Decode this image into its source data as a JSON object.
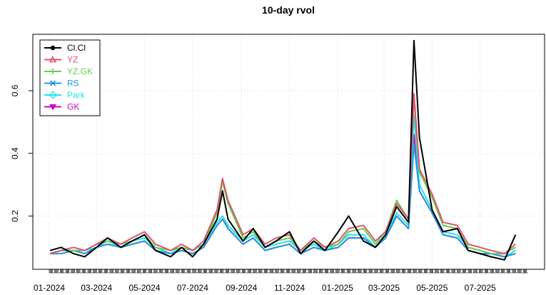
{
  "chart_data": {
    "type": "line",
    "title": "10-day rvol",
    "xlabel": "",
    "ylabel": "",
    "ylim": [
      0.03,
      0.78
    ],
    "y_ticks": [
      0.2,
      0.4,
      0.6
    ],
    "y_tick_labels": [
      "0.2",
      "0.4",
      "0.6"
    ],
    "x_range": [
      "2024-01-01",
      "2025-08-31"
    ],
    "x_ticks": [
      "2024-01-01",
      "2024-03-01",
      "2024-05-01",
      "2024-07-01",
      "2024-09-01",
      "2024-11-01",
      "2025-01-01",
      "2025-03-01",
      "2025-05-01",
      "2025-07-01"
    ],
    "x_tick_labels": [
      "01-2024",
      "03-2024",
      "05-2024",
      "07-2024",
      "09-2024",
      "11-2024",
      "01-2025",
      "03-2025",
      "05-2025",
      "07-2025"
    ],
    "grid": true,
    "legend_position": "top-left",
    "x": [
      "2024-01-02",
      "2024-01-16",
      "2024-02-01",
      "2024-02-15",
      "2024-03-01",
      "2024-03-15",
      "2024-04-01",
      "2024-04-15",
      "2024-05-01",
      "2024-05-15",
      "2024-06-03",
      "2024-06-17",
      "2024-07-01",
      "2024-07-15",
      "2024-08-01",
      "2024-08-08",
      "2024-08-15",
      "2024-09-03",
      "2024-09-16",
      "2024-10-01",
      "2024-10-15",
      "2024-11-01",
      "2024-11-15",
      "2024-12-02",
      "2024-12-16",
      "2025-01-02",
      "2025-01-15",
      "2025-02-03",
      "2025-02-18",
      "2025-03-03",
      "2025-03-17",
      "2025-04-01",
      "2025-04-08",
      "2025-04-15",
      "2025-05-01",
      "2025-05-15",
      "2025-06-02",
      "2025-06-16",
      "2025-07-01",
      "2025-07-15",
      "2025-08-01",
      "2025-08-15"
    ],
    "series": [
      {
        "name": "Cl.Cl",
        "color": "#000000",
        "values": [
          0.09,
          0.1,
          0.08,
          0.07,
          0.1,
          0.13,
          0.1,
          0.12,
          0.14,
          0.09,
          0.07,
          0.1,
          0.07,
          0.11,
          0.19,
          0.28,
          0.19,
          0.12,
          0.16,
          0.1,
          0.12,
          0.15,
          0.08,
          0.12,
          0.09,
          0.15,
          0.2,
          0.12,
          0.1,
          0.14,
          0.23,
          0.18,
          0.76,
          0.45,
          0.22,
          0.15,
          0.16,
          0.09,
          0.08,
          0.07,
          0.06,
          0.14
        ]
      },
      {
        "name": "YZ",
        "color": "#DF536B",
        "values": [
          0.08,
          0.09,
          0.1,
          0.09,
          0.11,
          0.13,
          0.11,
          0.13,
          0.15,
          0.11,
          0.09,
          0.11,
          0.09,
          0.12,
          0.22,
          0.32,
          0.25,
          0.14,
          0.16,
          0.11,
          0.13,
          0.14,
          0.09,
          0.13,
          0.1,
          0.12,
          0.16,
          0.17,
          0.12,
          0.15,
          0.24,
          0.19,
          0.59,
          0.35,
          0.27,
          0.18,
          0.17,
          0.11,
          0.1,
          0.09,
          0.08,
          0.11
        ]
      },
      {
        "name": "YZ.GK",
        "color": "#61D04F",
        "values": [
          0.08,
          0.09,
          0.09,
          0.09,
          0.11,
          0.12,
          0.11,
          0.12,
          0.14,
          0.1,
          0.09,
          0.1,
          0.09,
          0.11,
          0.21,
          0.31,
          0.24,
          0.13,
          0.15,
          0.1,
          0.12,
          0.13,
          0.09,
          0.12,
          0.1,
          0.11,
          0.15,
          0.16,
          0.11,
          0.15,
          0.25,
          0.19,
          0.58,
          0.34,
          0.26,
          0.17,
          0.16,
          0.1,
          0.09,
          0.08,
          0.08,
          0.1
        ]
      },
      {
        "name": "RS",
        "color": "#2297E6",
        "values": [
          0.08,
          0.08,
          0.09,
          0.08,
          0.1,
          0.11,
          0.1,
          0.11,
          0.12,
          0.09,
          0.08,
          0.09,
          0.08,
          0.1,
          0.17,
          0.19,
          0.16,
          0.11,
          0.13,
          0.09,
          0.1,
          0.11,
          0.08,
          0.1,
          0.09,
          0.1,
          0.13,
          0.13,
          0.1,
          0.13,
          0.2,
          0.16,
          0.43,
          0.28,
          0.21,
          0.14,
          0.13,
          0.09,
          0.08,
          0.08,
          0.07,
          0.08
        ]
      },
      {
        "name": "Park",
        "color": "#28E2E5",
        "values": [
          0.08,
          0.09,
          0.09,
          0.09,
          0.1,
          0.12,
          0.1,
          0.12,
          0.13,
          0.1,
          0.08,
          0.1,
          0.09,
          0.11,
          0.18,
          0.2,
          0.17,
          0.12,
          0.14,
          0.1,
          0.11,
          0.12,
          0.09,
          0.11,
          0.09,
          0.11,
          0.14,
          0.14,
          0.1,
          0.14,
          0.21,
          0.17,
          0.52,
          0.3,
          0.22,
          0.15,
          0.14,
          0.1,
          0.09,
          0.08,
          0.07,
          0.09
        ]
      },
      {
        "name": "GK",
        "color": "#CD0BBC",
        "values": [
          0.08,
          0.09,
          0.09,
          0.08,
          0.1,
          0.11,
          0.1,
          0.11,
          0.12,
          0.09,
          0.08,
          0.09,
          0.08,
          0.1,
          0.17,
          0.19,
          0.16,
          0.11,
          0.13,
          0.09,
          0.1,
          0.11,
          0.08,
          0.1,
          0.09,
          0.1,
          0.13,
          0.13,
          0.1,
          0.13,
          0.2,
          0.16,
          0.46,
          0.28,
          0.21,
          0.14,
          0.13,
          0.09,
          0.08,
          0.08,
          0.07,
          0.08
        ]
      }
    ],
    "legend": [
      {
        "label": "Cl.Cl",
        "color": "#000000",
        "marker": "circle"
      },
      {
        "label": "YZ",
        "color": "#DF536B",
        "marker": "triangle"
      },
      {
        "label": "YZ.GK",
        "color": "#61D04F",
        "marker": "plus"
      },
      {
        "label": "RS",
        "color": "#2297E6",
        "marker": "x"
      },
      {
        "label": "Park",
        "color": "#28E2E5",
        "marker": "diamond"
      },
      {
        "label": "GK",
        "color": "#CD0BBC",
        "marker": "triangle-down"
      }
    ]
  }
}
